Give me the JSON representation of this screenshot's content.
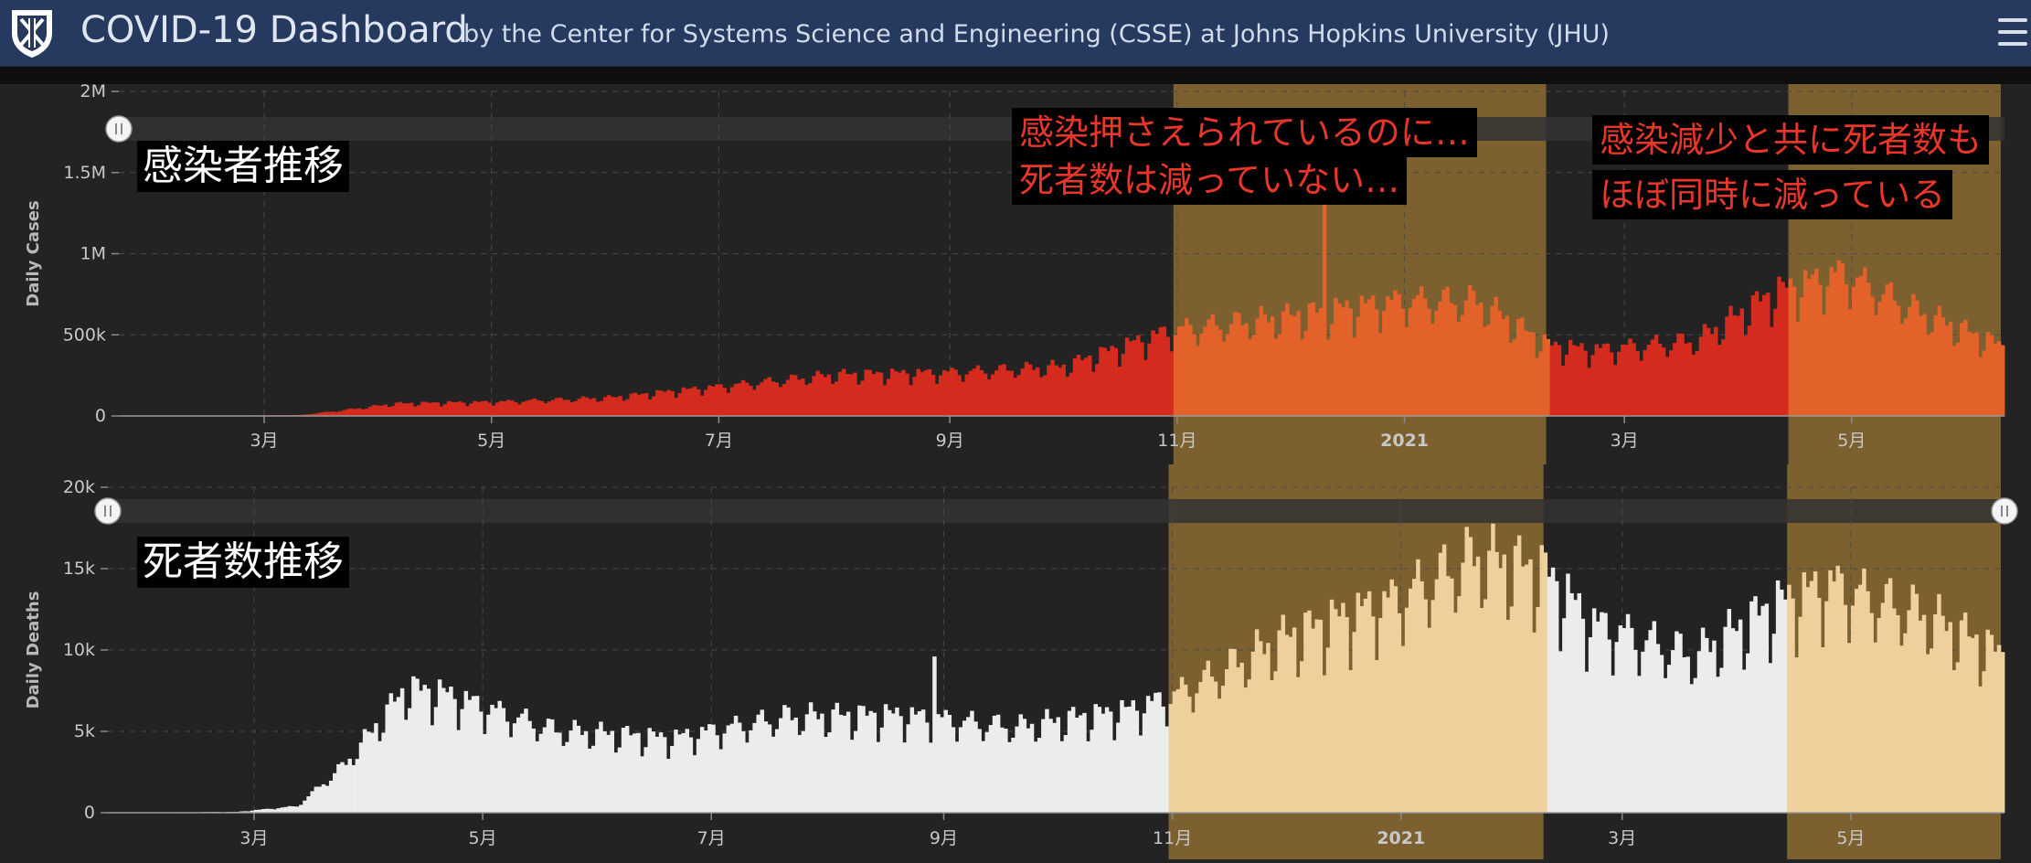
{
  "header": {
    "title": "COVID-19 Dashboard",
    "subtitle": "by the Center for Systems Science and Engineering (CSSE) at Johns Hopkins University (JHU)",
    "logo_icon": "jhu-shield-icon",
    "menu_icon": "hamburger-menu-icon"
  },
  "colors": {
    "header_bg": "#263a60",
    "chart_bg": "#232323",
    "cases_bar": "#d52b1e",
    "cases_bar_highlighted": "#e3622a",
    "deaths_bar": "#ececec",
    "deaths_bar_highlighted": "#efd09c",
    "highlight_band": "#7d6030",
    "annotation_text": "#e8372a"
  },
  "annotations": {
    "cases_label": "感染者推移",
    "deaths_label": "死者数推移",
    "note_1_line_1": "感染押さえられているのに…",
    "note_1_line_2": "死者数は減っていない…",
    "note_2_line_1": "感染減少と共に死者数も",
    "note_2_line_2": "ほぼ同時に減っている"
  },
  "chart_data": [
    {
      "type": "bar",
      "ylabel": "Daily Cases",
      "ylim": [
        0,
        2000000
      ],
      "yticks": [
        {
          "value": 0,
          "label": "0"
        },
        {
          "value": 500000,
          "label": "500k"
        },
        {
          "value": 1000000,
          "label": "1M"
        },
        {
          "value": 1500000,
          "label": "1.5M"
        },
        {
          "value": 2000000,
          "label": "2M"
        }
      ],
      "xlim": [
        "2020-01-22",
        "2021-06-11"
      ],
      "xticks": [
        {
          "date": "2020-03-01",
          "label": "3月",
          "bold": false
        },
        {
          "date": "2020-05-01",
          "label": "5月",
          "bold": false
        },
        {
          "date": "2020-07-01",
          "label": "7月",
          "bold": false
        },
        {
          "date": "2020-09-01",
          "label": "9月",
          "bold": false
        },
        {
          "date": "2020-11-01",
          "label": "11月",
          "bold": false
        },
        {
          "date": "2021-01-01",
          "label": "2021",
          "bold": true
        },
        {
          "date": "2021-03-01",
          "label": "3月",
          "bold": false
        },
        {
          "date": "2021-05-01",
          "label": "5月",
          "bold": false
        }
      ],
      "grid": true,
      "highlight_bands": [
        [
          "2020-10-31",
          "2021-02-08"
        ],
        [
          "2021-04-14",
          "2021-06-10"
        ]
      ],
      "keypoints": [
        {
          "date": "2020-01-22",
          "value": 500
        },
        {
          "date": "2020-02-20",
          "value": 2000
        },
        {
          "date": "2020-03-10",
          "value": 5000
        },
        {
          "date": "2020-03-20",
          "value": 30000
        },
        {
          "date": "2020-04-05",
          "value": 75000
        },
        {
          "date": "2020-05-01",
          "value": 85000
        },
        {
          "date": "2020-06-01",
          "value": 110000
        },
        {
          "date": "2020-07-01",
          "value": 180000
        },
        {
          "date": "2020-08-01",
          "value": 250000
        },
        {
          "date": "2020-09-01",
          "value": 265000
        },
        {
          "date": "2020-10-01",
          "value": 300000
        },
        {
          "date": "2020-10-30",
          "value": 520000
        },
        {
          "date": "2020-11-30",
          "value": 600000
        },
        {
          "date": "2020-12-31",
          "value": 700000
        },
        {
          "date": "2021-01-20",
          "value": 700000
        },
        {
          "date": "2021-02-08",
          "value": 430000
        },
        {
          "date": "2021-02-20",
          "value": 400000
        },
        {
          "date": "2021-03-20",
          "value": 460000
        },
        {
          "date": "2021-04-10",
          "value": 750000
        },
        {
          "date": "2021-04-28",
          "value": 870000
        },
        {
          "date": "2021-05-20",
          "value": 620000
        },
        {
          "date": "2021-06-10",
          "value": 420000
        }
      ],
      "spikes": [
        {
          "date": "2020-12-10",
          "value": 1500000
        }
      ]
    },
    {
      "type": "bar",
      "ylabel": "Daily Deaths",
      "ylim": [
        0,
        20000
      ],
      "yticks": [
        {
          "value": 0,
          "label": "0"
        },
        {
          "value": 5000,
          "label": "5k"
        },
        {
          "value": 10000,
          "label": "10k"
        },
        {
          "value": 15000,
          "label": "15k"
        },
        {
          "value": 20000,
          "label": "20k"
        }
      ],
      "xlim": [
        "2020-01-22",
        "2021-06-11"
      ],
      "xticks": [
        {
          "date": "2020-03-01",
          "label": "3月",
          "bold": false
        },
        {
          "date": "2020-05-01",
          "label": "5月",
          "bold": false
        },
        {
          "date": "2020-07-01",
          "label": "7月",
          "bold": false
        },
        {
          "date": "2020-09-01",
          "label": "9月",
          "bold": false
        },
        {
          "date": "2020-11-01",
          "label": "11月",
          "bold": false
        },
        {
          "date": "2021-01-01",
          "label": "2021",
          "bold": true
        },
        {
          "date": "2021-03-01",
          "label": "3月",
          "bold": false
        },
        {
          "date": "2021-05-01",
          "label": "5月",
          "bold": false
        }
      ],
      "grid": true,
      "highlight_bands": [
        [
          "2020-10-31",
          "2021-02-08"
        ],
        [
          "2021-04-14",
          "2021-06-10"
        ]
      ],
      "keypoints": [
        {
          "date": "2020-01-22",
          "value": 0
        },
        {
          "date": "2020-02-25",
          "value": 50
        },
        {
          "date": "2020-03-12",
          "value": 400
        },
        {
          "date": "2020-03-25",
          "value": 3000
        },
        {
          "date": "2020-04-10",
          "value": 7500
        },
        {
          "date": "2020-04-20",
          "value": 7200
        },
        {
          "date": "2020-05-20",
          "value": 5000
        },
        {
          "date": "2020-06-20",
          "value": 4500
        },
        {
          "date": "2020-07-20",
          "value": 5800
        },
        {
          "date": "2020-08-20",
          "value": 5900
        },
        {
          "date": "2020-09-20",
          "value": 5200
        },
        {
          "date": "2020-10-20",
          "value": 6200
        },
        {
          "date": "2020-10-31",
          "value": 7000
        },
        {
          "date": "2020-11-30",
          "value": 10500
        },
        {
          "date": "2020-12-31",
          "value": 13000
        },
        {
          "date": "2021-01-20",
          "value": 15500
        },
        {
          "date": "2021-02-08",
          "value": 14500
        },
        {
          "date": "2021-02-20",
          "value": 11500
        },
        {
          "date": "2021-03-20",
          "value": 9500
        },
        {
          "date": "2021-04-10",
          "value": 12500
        },
        {
          "date": "2021-04-25",
          "value": 13800
        },
        {
          "date": "2021-05-20",
          "value": 12000
        },
        {
          "date": "2021-06-10",
          "value": 9500
        }
      ],
      "spikes": [
        {
          "date": "2020-08-29",
          "value": 9600
        }
      ]
    }
  ]
}
